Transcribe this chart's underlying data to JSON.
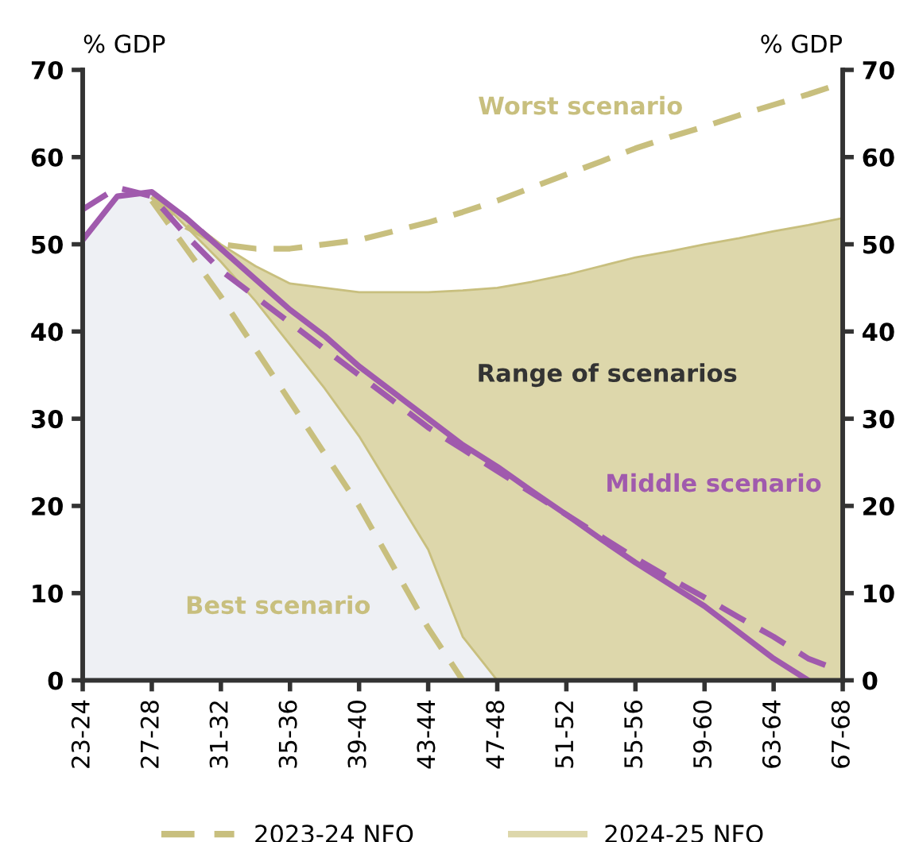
{
  "chart_data": {
    "type": "line",
    "ylabel": "% GDP",
    "y2label": "% GDP",
    "categories": [
      "23-24",
      null,
      "27-28",
      null,
      "31-32",
      null,
      "35-36",
      null,
      "39-40",
      null,
      "43-44",
      null,
      "47-48",
      null,
      "51-52",
      null,
      "55-56",
      null,
      "59-60",
      null,
      "63-64",
      null,
      "67-68"
    ],
    "ylim": [
      0,
      70
    ],
    "yticks": [
      0,
      10,
      20,
      30,
      40,
      50,
      60,
      70
    ],
    "y2lim": [
      0,
      70
    ],
    "y2ticks": [
      0,
      10,
      20,
      30,
      40,
      50,
      60,
      70
    ],
    "grid": false,
    "legend": "bottom",
    "series": [
      {
        "type": "area",
        "name": "2024-25 NFO",
        "color": "#ddd7ab",
        "values": [
          null,
          null,
          56,
          53,
          50,
          47.5,
          45.5,
          45,
          44.5,
          44.5,
          44.5,
          44.7,
          45,
          45.7,
          46.5,
          47.5,
          48.5,
          49.2,
          50,
          50.7,
          51.5,
          52.2,
          53
        ]
      },
      {
        "type": "area",
        "color": "#eef0f4",
        "values": [
          50.5,
          55.5,
          56,
          52,
          48,
          43.5,
          38.5,
          33.5,
          28,
          21.5,
          15,
          5,
          0,
          null,
          null,
          null,
          null,
          null,
          null,
          null,
          null,
          null,
          null
        ]
      },
      {
        "name": "2023-24 NFO",
        "color": "#c8bf7e",
        "line_style": "dashed",
        "values": [
          null,
          null,
          55.5,
          52,
          50,
          49.5,
          49.5,
          50,
          50.5,
          51.5,
          52.5,
          53.7,
          55,
          56.5,
          58,
          59.5,
          61,
          62.3,
          63.5,
          64.8,
          66,
          67.2,
          68.5
        ]
      },
      {
        "color": "#c8bf7e",
        "line_style": "dashed",
        "values": [
          null,
          null,
          55,
          49.5,
          44,
          38,
          32,
          26,
          20,
          13,
          6,
          0,
          null,
          null,
          null,
          null,
          null,
          null,
          null,
          null,
          null,
          null,
          null
        ]
      },
      {
        "color": "#a05aad",
        "line_style": "dashed",
        "values": [
          54,
          56.5,
          55.5,
          51,
          47,
          44,
          41,
          38,
          35,
          32,
          29,
          26.5,
          24,
          21.5,
          19,
          16.5,
          14,
          11.7,
          9.5,
          7.2,
          5,
          2.5,
          1
        ]
      },
      {
        "color": "#a05aad",
        "line_style": "solid",
        "values": [
          50.5,
          55.5,
          56,
          53,
          49.5,
          46,
          42.5,
          39.5,
          36,
          33,
          30,
          27,
          24.5,
          21.7,
          19,
          16.2,
          13.5,
          11,
          8.5,
          5.5,
          2.5,
          0,
          null
        ]
      }
    ],
    "annotations": [
      "Worst scenario",
      "Range of scenarios",
      "Middle scenario",
      "Best scenario"
    ]
  }
}
